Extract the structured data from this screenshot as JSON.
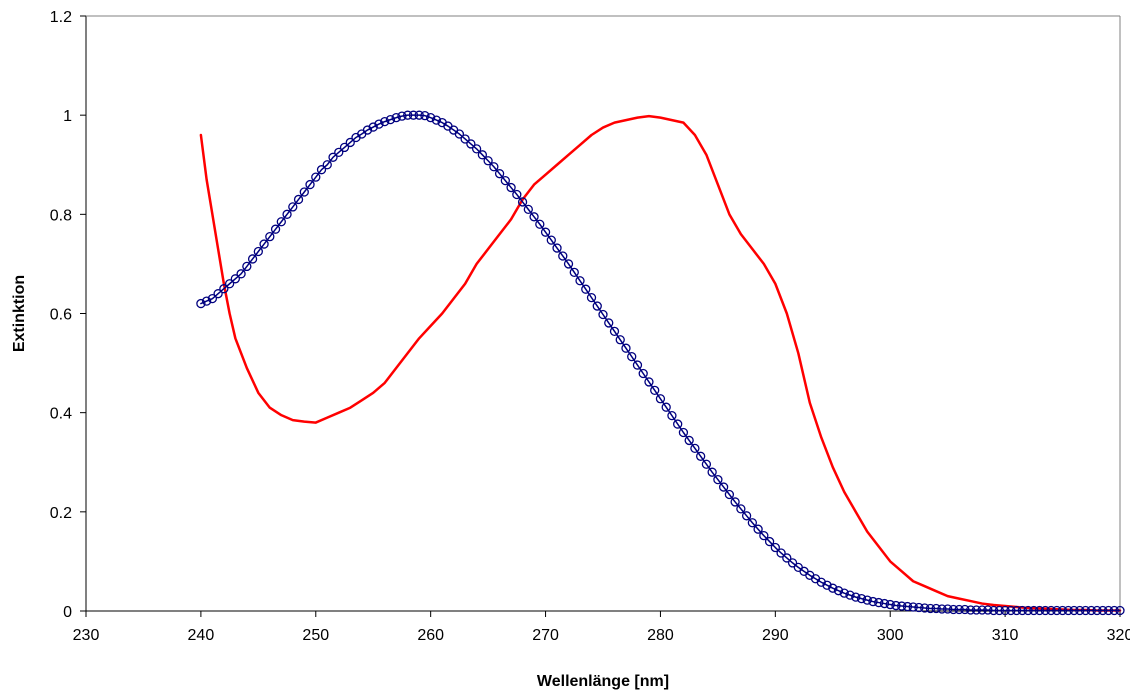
{
  "chart_data": {
    "type": "line",
    "title": "",
    "xlabel": "Wellenlänge [nm]",
    "ylabel": "Extinktion",
    "xlim": [
      230,
      320
    ],
    "ylim": [
      0,
      1.2
    ],
    "xticks": [
      "230",
      "240",
      "250",
      "260",
      "270",
      "280",
      "290",
      "300",
      "310",
      "320"
    ],
    "yticks": [
      "0",
      "0.2",
      "0.4",
      "0.6",
      "0.8",
      "1",
      "1.2"
    ],
    "grid": false,
    "legend": "none",
    "series": [
      {
        "color": "#ff0000",
        "marker": "none",
        "x": [
          240,
          240.5,
          241,
          241.5,
          242,
          242.5,
          243,
          243.5,
          244,
          245,
          246,
          247,
          248,
          249,
          250,
          251,
          252,
          253,
          254,
          255,
          256,
          257,
          258,
          259,
          260,
          261,
          262,
          263,
          264,
          265,
          266,
          267,
          268,
          269,
          270,
          271,
          272,
          273,
          274,
          275,
          276,
          277,
          278,
          279,
          280,
          281,
          282,
          283,
          284,
          285,
          286,
          287,
          288,
          289,
          290,
          291,
          292,
          293,
          294,
          295,
          296,
          297,
          298,
          299,
          300,
          301,
          302,
          303,
          304,
          305,
          306,
          307,
          308,
          309,
          310,
          311,
          312,
          313,
          314,
          315,
          316,
          317,
          318,
          319,
          320
        ],
        "y": [
          0.96,
          0.87,
          0.8,
          0.73,
          0.66,
          0.6,
          0.55,
          0.52,
          0.49,
          0.44,
          0.41,
          0.395,
          0.385,
          0.382,
          0.38,
          0.39,
          0.4,
          0.41,
          0.425,
          0.44,
          0.46,
          0.49,
          0.52,
          0.55,
          0.575,
          0.6,
          0.63,
          0.66,
          0.7,
          0.73,
          0.76,
          0.79,
          0.83,
          0.86,
          0.88,
          0.9,
          0.92,
          0.94,
          0.96,
          0.975,
          0.985,
          0.99,
          0.995,
          0.998,
          0.995,
          0.99,
          0.985,
          0.96,
          0.92,
          0.86,
          0.8,
          0.76,
          0.73,
          0.7,
          0.66,
          0.6,
          0.52,
          0.42,
          0.35,
          0.29,
          0.24,
          0.2,
          0.16,
          0.13,
          0.1,
          0.08,
          0.06,
          0.05,
          0.04,
          0.03,
          0.025,
          0.02,
          0.015,
          0.012,
          0.01,
          0.008,
          0.006,
          0.005,
          0.004,
          0.003,
          0.002,
          0.002,
          0.001,
          0.001,
          0.001
        ]
      },
      {
        "color": "#00007f",
        "marker": "circle",
        "x": [
          240,
          240.5,
          241,
          241.5,
          242,
          242.5,
          243,
          243.5,
          244,
          244.5,
          245,
          245.5,
          246,
          246.5,
          247,
          247.5,
          248,
          248.5,
          249,
          249.5,
          250,
          250.5,
          251,
          251.5,
          252,
          252.5,
          253,
          253.5,
          254,
          254.5,
          255,
          255.5,
          256,
          256.5,
          257,
          257.5,
          258,
          258.5,
          259,
          259.5,
          260,
          260.5,
          261,
          261.5,
          262,
          262.5,
          263,
          263.5,
          264,
          264.5,
          265,
          265.5,
          266,
          266.5,
          267,
          267.5,
          268,
          268.5,
          269,
          269.5,
          270,
          270.5,
          271,
          271.5,
          272,
          272.5,
          273,
          273.5,
          274,
          274.5,
          275,
          275.5,
          276,
          276.5,
          277,
          277.5,
          278,
          278.5,
          279,
          279.5,
          280,
          280.5,
          281,
          281.5,
          282,
          282.5,
          283,
          283.5,
          284,
          284.5,
          285,
          285.5,
          286,
          286.5,
          287,
          287.5,
          288,
          288.5,
          289,
          289.5,
          290,
          290.5,
          291,
          291.5,
          292,
          292.5,
          293,
          293.5,
          294,
          294.5,
          295,
          295.5,
          296,
          296.5,
          297,
          297.5,
          298,
          298.5,
          299,
          299.5,
          300,
          300.5,
          301,
          301.5,
          302,
          302.5,
          303,
          303.5,
          304,
          304.5,
          305,
          305.5,
          306,
          306.5,
          307,
          307.5,
          308,
          308.5,
          309,
          309.5,
          310,
          310.5,
          311,
          311.5,
          312,
          312.5,
          313,
          313.5,
          314,
          314.5,
          315,
          315.5,
          316,
          316.5,
          317,
          317.5,
          318,
          318.5,
          319,
          319.5,
          320
        ],
        "y": [
          0.62,
          0.625,
          0.63,
          0.64,
          0.65,
          0.66,
          0.67,
          0.68,
          0.695,
          0.71,
          0.725,
          0.74,
          0.755,
          0.77,
          0.785,
          0.8,
          0.815,
          0.83,
          0.845,
          0.86,
          0.875,
          0.89,
          0.9,
          0.915,
          0.925,
          0.935,
          0.945,
          0.955,
          0.962,
          0.97,
          0.976,
          0.982,
          0.987,
          0.991,
          0.995,
          0.998,
          1.0,
          1.0,
          1.0,
          0.999,
          0.995,
          0.99,
          0.985,
          0.978,
          0.97,
          0.962,
          0.952,
          0.942,
          0.932,
          0.92,
          0.908,
          0.896,
          0.882,
          0.868,
          0.854,
          0.84,
          0.825,
          0.81,
          0.795,
          0.78,
          0.764,
          0.748,
          0.732,
          0.716,
          0.7,
          0.683,
          0.666,
          0.649,
          0.632,
          0.615,
          0.598,
          0.581,
          0.564,
          0.547,
          0.53,
          0.513,
          0.496,
          0.479,
          0.462,
          0.445,
          0.428,
          0.411,
          0.394,
          0.377,
          0.36,
          0.344,
          0.328,
          0.312,
          0.296,
          0.28,
          0.265,
          0.25,
          0.235,
          0.22,
          0.206,
          0.192,
          0.178,
          0.165,
          0.152,
          0.14,
          0.128,
          0.117,
          0.107,
          0.097,
          0.088,
          0.08,
          0.072,
          0.065,
          0.058,
          0.052,
          0.046,
          0.041,
          0.036,
          0.032,
          0.028,
          0.025,
          0.022,
          0.019,
          0.017,
          0.015,
          0.013,
          0.011,
          0.01,
          0.009,
          0.008,
          0.007,
          0.006,
          0.005,
          0.005,
          0.004,
          0.004,
          0.003,
          0.003,
          0.003,
          0.002,
          0.002,
          0.002,
          0.002,
          0.001,
          0.001,
          0.001,
          0.001,
          0.001,
          0.001,
          0.001,
          0.001,
          0.001,
          0.001,
          0.001,
          0.001,
          0.001,
          0.001,
          0.001,
          0.001,
          0.001,
          0.001,
          0.001,
          0.001,
          0.001,
          0.001,
          0.001
        ]
      }
    ]
  }
}
